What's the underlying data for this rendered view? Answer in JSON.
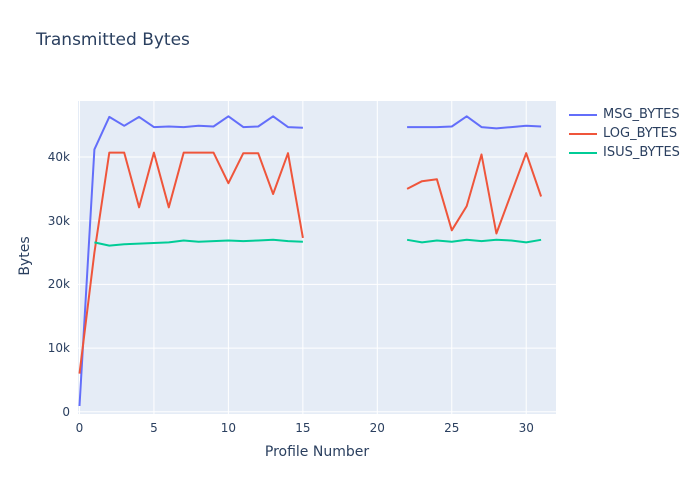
{
  "chart_data": {
    "type": "line",
    "title": "Transmitted Bytes",
    "xlabel": "Profile Number",
    "ylabel": "Bytes",
    "grid": true,
    "legend_position": "right",
    "plot_bg": "#e5ecf6",
    "grid_color": "#ffffff",
    "text_color": "#2a3f5f",
    "xlim": [
      -0.1,
      32.0
    ],
    "ylim": [
      -350,
      48800
    ],
    "x_ticks": [
      0,
      5,
      10,
      15,
      20,
      25,
      30
    ],
    "x_tick_labels": [
      "0",
      "5",
      "10",
      "15",
      "20",
      "25",
      "30"
    ],
    "y_ticks": [
      0,
      10000,
      20000,
      30000,
      40000
    ],
    "y_tick_labels": [
      "0",
      "10k",
      "20k",
      "30k",
      "40k"
    ],
    "x": [
      0,
      1,
      2,
      3,
      4,
      5,
      6,
      7,
      8,
      9,
      10,
      11,
      12,
      13,
      14,
      15,
      16,
      17,
      18,
      19,
      20,
      21,
      22,
      23,
      24,
      25,
      26,
      27,
      28,
      29,
      30,
      31
    ],
    "series": [
      {
        "name": "MSG_BYTES",
        "color": "#636efa",
        "values": [
          900,
          41200,
          46300,
          44900,
          46300,
          44700,
          44800,
          44700,
          44900,
          44800,
          46400,
          44700,
          44800,
          46400,
          44700,
          44600,
          null,
          null,
          null,
          null,
          null,
          null,
          44700,
          44700,
          44700,
          44800,
          46400,
          44700,
          44500,
          44700,
          44900,
          44800
        ]
      },
      {
        "name": "LOG_BYTES",
        "color": "#ef553b",
        "values": [
          6000,
          25000,
          40700,
          40700,
          32100,
          40700,
          32100,
          40700,
          40700,
          40700,
          35900,
          40600,
          40600,
          34200,
          40600,
          27300,
          null,
          null,
          null,
          null,
          null,
          null,
          35000,
          36200,
          36500,
          28500,
          32300,
          40400,
          28000,
          34300,
          40600,
          33800
        ]
      },
      {
        "name": "ISUS_BYTES",
        "color": "#00cc96",
        "values": [
          null,
          26600,
          26100,
          26300,
          26400,
          26500,
          26600,
          26900,
          26700,
          26800,
          26900,
          26800,
          26900,
          27000,
          26800,
          26700,
          null,
          null,
          null,
          null,
          null,
          null,
          27000,
          26600,
          26900,
          26700,
          27000,
          26800,
          27000,
          26900,
          26600,
          27000
        ]
      }
    ]
  }
}
